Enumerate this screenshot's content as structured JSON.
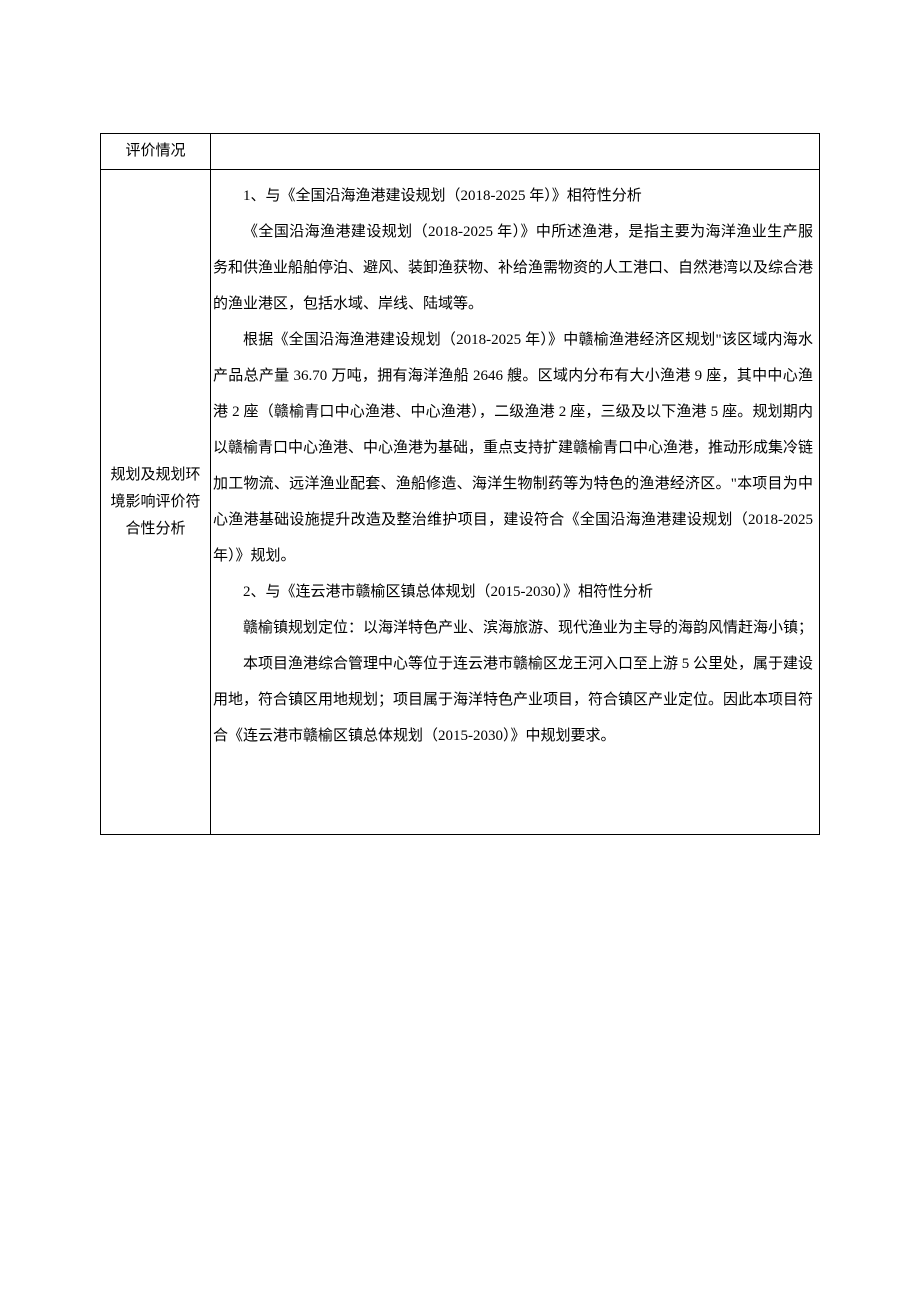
{
  "table": {
    "row1": {
      "label": "评价情况"
    },
    "row2": {
      "label": "规划及规划环境影响评价符合性分析",
      "paragraphs": [
        "1、与《全国沿海渔港建设规划（2018-2025 年）》相符性分析",
        "《全国沿海渔港建设规划（2018-2025 年）》中所述渔港，是指主要为海洋渔业生产服务和供渔业船舶停泊、避风、装卸渔获物、补给渔需物资的人工港口、自然港湾以及综合港的渔业港区，包括水域、岸线、陆域等。",
        "根据《全国沿海渔港建设规划（2018-2025 年）》中赣榆渔港经济区规划\"该区域内海水产品总产量 36.70 万吨，拥有海洋渔船 2646 艘。区域内分布有大小渔港 9 座，其中中心渔港 2 座（赣榆青口中心渔港、中心渔港），二级渔港 2 座，三级及以下渔港 5 座。规划期内以赣榆青口中心渔港、中心渔港为基础，重点支持扩建赣榆青口中心渔港，推动形成集冷链加工物流、远洋渔业配套、渔船修造、海洋生物制药等为特色的渔港经济区。\"本项目为中心渔港基础设施提升改造及整治维护项目，建设符合《全国沿海渔港建设规划（2018-2025 年）》规划。",
        "2、与《连云港市赣榆区镇总体规划（2015-2030）》相符性分析",
        "赣榆镇规划定位：以海洋特色产业、滨海旅游、现代渔业为主导的海韵风情赶海小镇；",
        "本项目渔港综合管理中心等位于连云港市赣榆区龙王河入口至上游 5 公里处，属于建设用地，符合镇区用地规划；项目属于海洋特色产业项目，符合镇区产业定位。因此本项目符合《连云港市赣榆区镇总体规划（2015-2030）》中规划要求。"
      ]
    }
  },
  "style": {
    "background_color": "#ffffff",
    "border_color": "#000000",
    "text_color": "#000000",
    "font_size": 15,
    "line_height": 2.4,
    "label_cell_width": 110
  }
}
